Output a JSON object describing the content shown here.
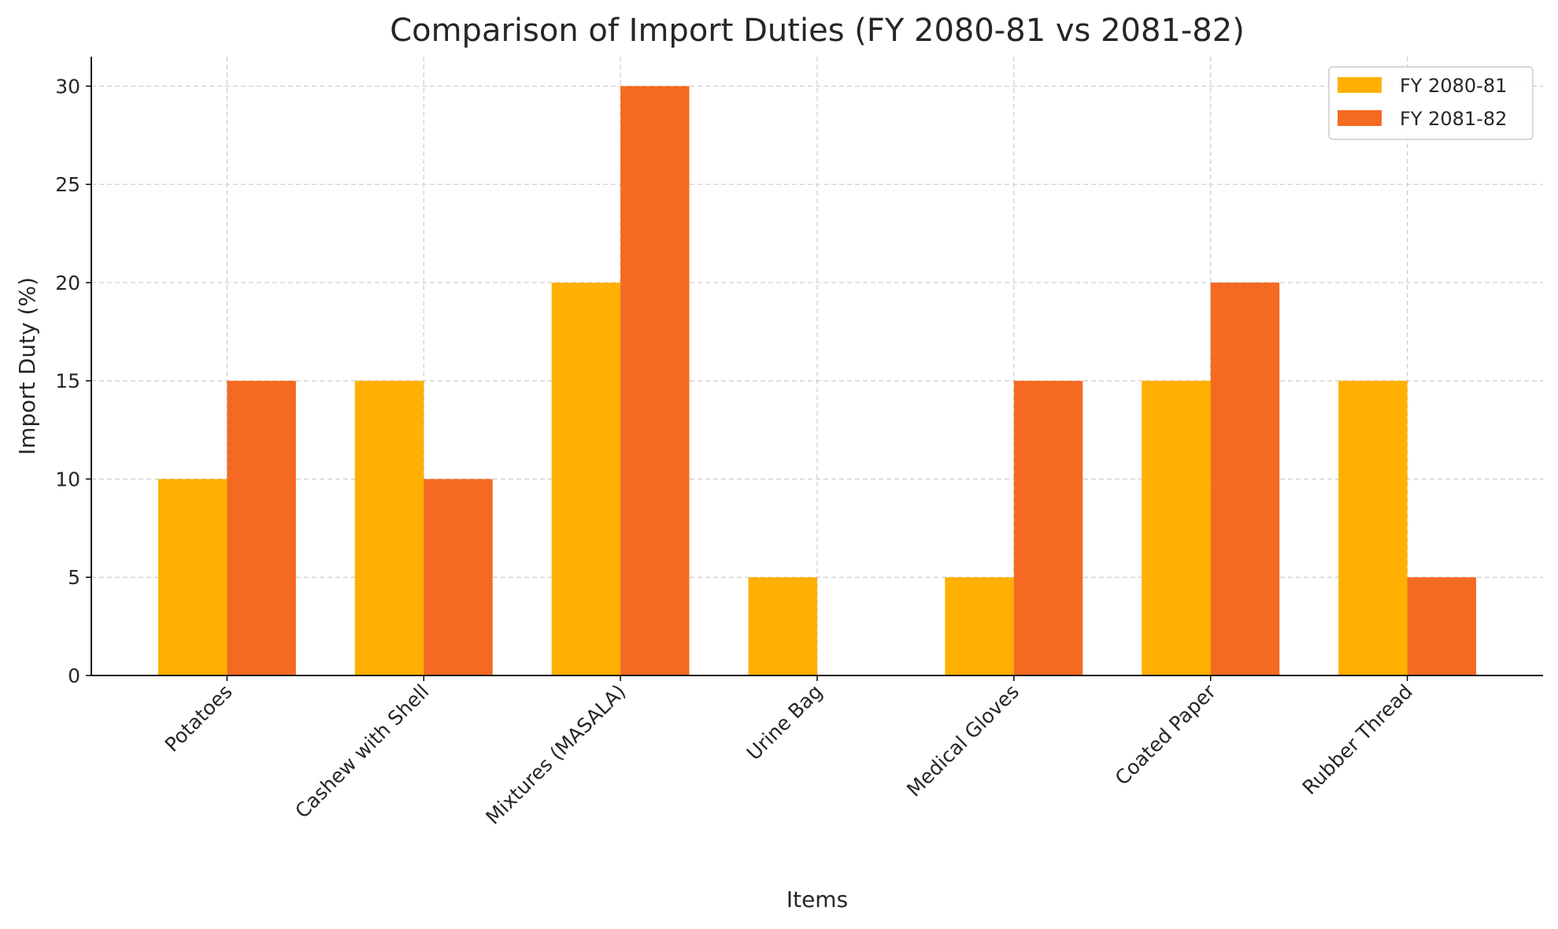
{
  "chart_data": {
    "type": "bar",
    "title": "Comparison of Import Duties (FY 2080-81 vs 2081-82)",
    "xlabel": "Items",
    "ylabel": "Import Duty (%)",
    "categories": [
      "Potatoes",
      "Cashew with Shell",
      "Mixtures (MASALA)",
      "Urine Bag",
      "Medical Gloves",
      "Coated Paper",
      "Rubber Thread"
    ],
    "series": [
      {
        "name": "FY 2080-81",
        "color": "#FFB000",
        "values": [
          10,
          15,
          20,
          5,
          5,
          15,
          15
        ]
      },
      {
        "name": "FY 2081-82",
        "color": "#F46A22",
        "values": [
          15,
          10,
          30,
          0,
          15,
          20,
          5
        ]
      }
    ],
    "ylim": [
      0,
      31.5
    ],
    "yticks": [
      0,
      5,
      10,
      15,
      20,
      25,
      30
    ],
    "grid": true,
    "legend_position": "top-right",
    "xtick_rotation": 45
  }
}
